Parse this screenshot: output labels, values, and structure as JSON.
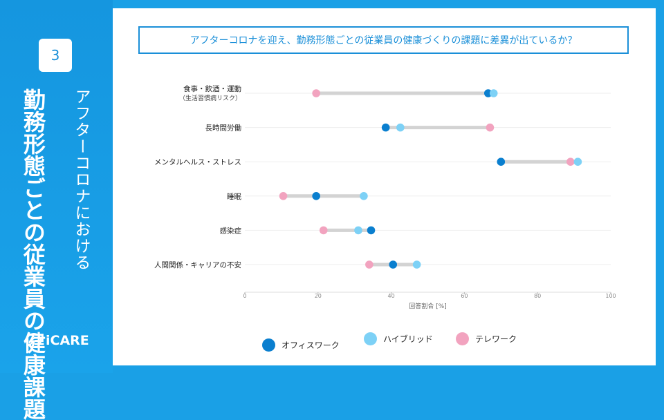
{
  "sidebar": {
    "badge": "3",
    "subtitle": "アフターコロナにおける",
    "title": "勤務形態ごとの従業員の健康課題",
    "logo": "iCARE"
  },
  "question": "アフターコロナを迎え、勤務形態ごとの従業員の健康づくりの課題に差異が出ているか？",
  "colors": {
    "office": "#0a7fcf",
    "hybrid": "#7dd1f6",
    "tele": "#f2a3bf",
    "accent": "#1a8fd8",
    "bar": "#d3d3d3"
  },
  "chart_data": {
    "type": "dumbbell",
    "xlabel": "回答割合 [%]",
    "xlim": [
      0,
      100
    ],
    "xticks": [
      0,
      20,
      40,
      60,
      80,
      100
    ],
    "categories": [
      {
        "label": "食事・飲酒・運動",
        "sublabel": "（生活習慣病リスク）"
      },
      {
        "label": "長時間労働",
        "sublabel": ""
      },
      {
        "label": "メンタルヘルス・ストレス",
        "sublabel": ""
      },
      {
        "label": "睡眠",
        "sublabel": ""
      },
      {
        "label": "感染症",
        "sublabel": ""
      },
      {
        "label": "人間関係・キャリアの不安",
        "sublabel": ""
      }
    ],
    "series": [
      {
        "key": "office",
        "name": "オフィスワーク",
        "values": [
          66.5,
          38.5,
          70,
          19.5,
          34.5,
          40.5
        ]
      },
      {
        "key": "hybrid",
        "name": "ハイブリッド",
        "values": [
          68,
          42.5,
          91,
          32.5,
          31,
          47
        ]
      },
      {
        "key": "tele",
        "name": "テレワーク",
        "values": [
          19.5,
          67,
          89,
          10.5,
          21.5,
          34
        ]
      }
    ]
  }
}
